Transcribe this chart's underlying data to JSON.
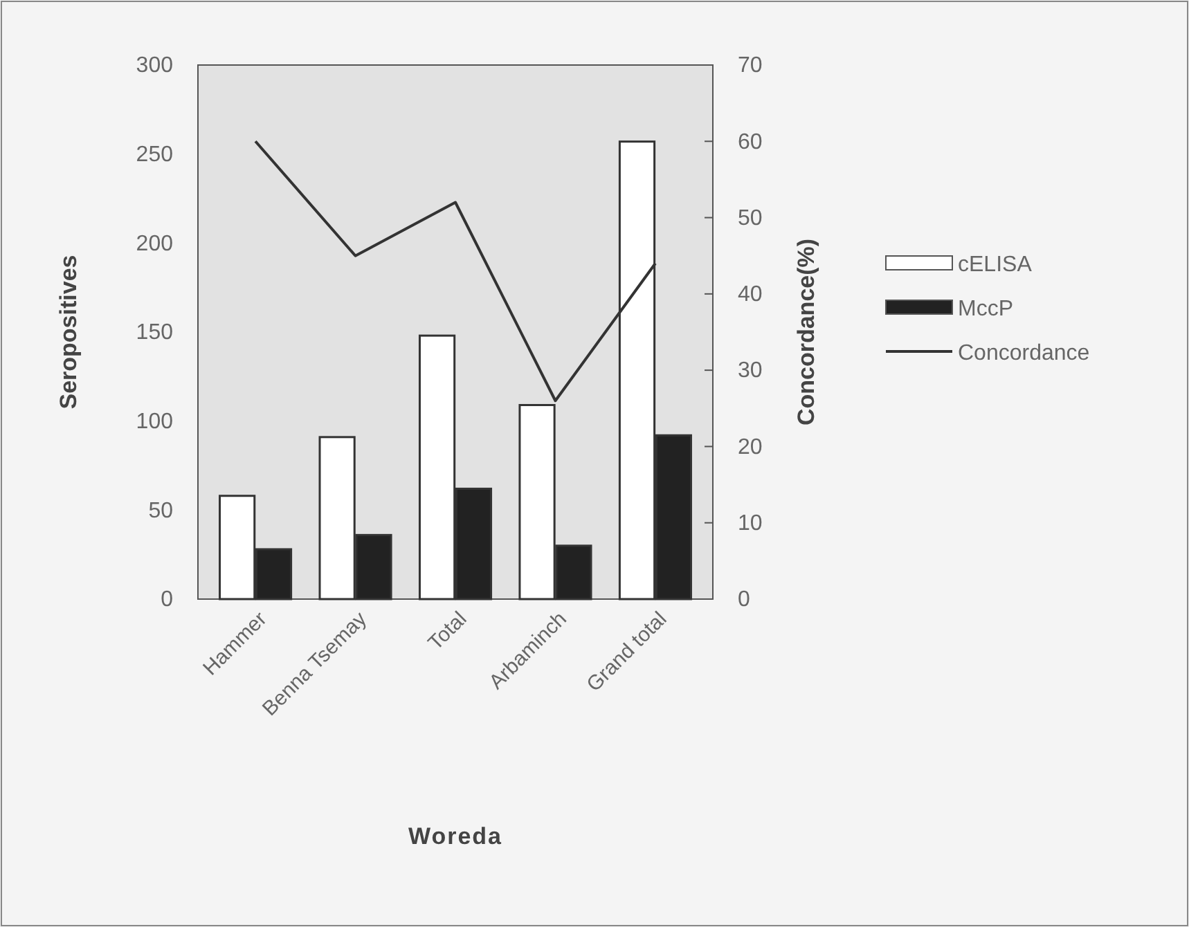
{
  "chart_data": {
    "type": "bar",
    "xlabel": "Woreda",
    "ylabel": "Seropositives",
    "y2label": "Concordance(%)",
    "categories": [
      "Hammer",
      "Benna Tsemay",
      "Total",
      "Arbaminch",
      "Grand total"
    ],
    "series": [
      {
        "name": "cELISA",
        "color": "#ffffff",
        "values": [
          58,
          91,
          148,
          109,
          257
        ]
      },
      {
        "name": "MccP",
        "color": "#222222",
        "values": [
          28,
          36,
          62,
          30,
          92
        ]
      },
      {
        "name": "Concordance",
        "type": "line",
        "axis": "y2",
        "color": "#333333",
        "values": [
          60,
          45,
          52,
          26,
          44
        ]
      }
    ],
    "ylim": [
      0,
      300
    ],
    "yticks": [
      0,
      50,
      100,
      150,
      200,
      250,
      300
    ],
    "y2lim": [
      0,
      70
    ],
    "y2ticks": [
      0,
      10,
      20,
      30,
      40,
      50,
      60,
      70
    ],
    "legend": "right",
    "grid": false
  }
}
